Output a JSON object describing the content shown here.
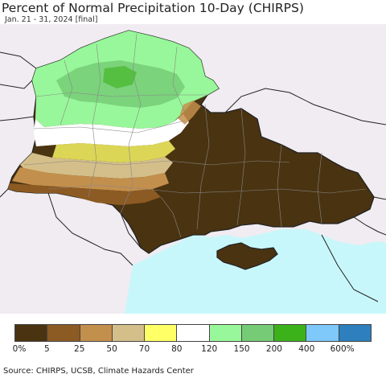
{
  "title": "Percent of Normal Precipitation 10-Day (CHIRPS)",
  "subtitle": "Jan. 21 - 31, 2024 [final]",
  "legend": {
    "colors": [
      "#4a3311",
      "#8c5a23",
      "#c38f4c",
      "#d4bf8a",
      "#ffff66",
      "#ffffff",
      "#98f79a",
      "#76cc76",
      "#3cb21a",
      "#7fc8fa",
      "#2d7fbd"
    ],
    "labels": [
      "0%",
      "5",
      "25",
      "50",
      "70",
      "80",
      "120",
      "150",
      "200",
      "400",
      "600%"
    ]
  },
  "source": "Source: CHIRPS, UCSB, Climate Hazards Center",
  "colors": {
    "sea": "#c8f7fb",
    "land_outside": "#f0ecf1",
    "border": "#222222",
    "admin_border": "#888888"
  }
}
